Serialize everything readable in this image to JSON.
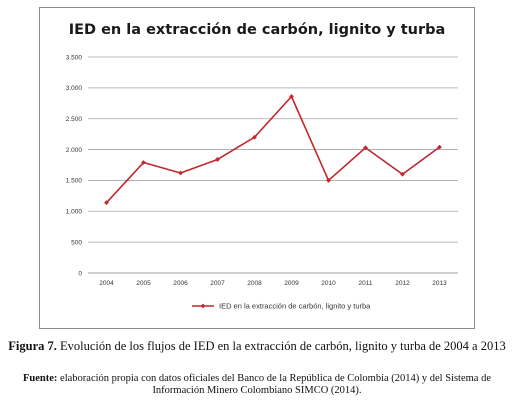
{
  "chart_data": {
    "type": "line",
    "title": "IED en la extracción de carbón, lignito y turba",
    "categories": [
      "2004",
      "2005",
      "2006",
      "2007",
      "2008",
      "2009",
      "2010",
      "2011",
      "2012",
      "2013"
    ],
    "series": [
      {
        "name": "IED en la extracción de carbón, lignito y turba",
        "values": [
          1140,
          1790,
          1620,
          1840,
          2200,
          2860,
          1500,
          2030,
          1600,
          2040
        ],
        "color": "#c0282d"
      }
    ],
    "ylim": [
      0,
      3500
    ],
    "yticks": [
      0,
      500,
      1000,
      1500,
      2000,
      2500,
      3000,
      3500
    ],
    "ytick_labels": [
      "0",
      "500",
      "1.000",
      "1.500",
      "2.000",
      "2.500",
      "3.000",
      "3.500"
    ],
    "grid": true,
    "legend": "bottom"
  },
  "caption": {
    "figure_label": "Figura 7.",
    "figure_text": " Evolución de los flujos de IED en la extracción de carbón, lignito y turba de 2004 a 2013",
    "source_label": "Fuente:",
    "source_text": " elaboración propia con datos oficiales del Banco de la República de Colombia (2014) y del Sistema de Información Minero Colombiano SIMCO (2014)."
  }
}
